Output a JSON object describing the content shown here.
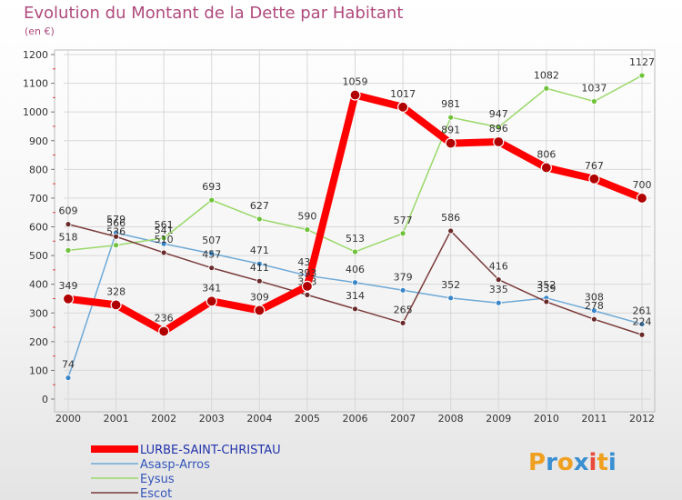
{
  "header": {
    "title": "Evolution du Montant de la Dette par Habitant",
    "unit": "(en €)"
  },
  "logo": {
    "text": "Proxiti",
    "letters": [
      "P",
      "r",
      "o",
      "x",
      "i",
      "t",
      "i"
    ],
    "colors": [
      "#f0a020",
      "#3a8fd0",
      "#f0a020",
      "#3a8fd0",
      "#e94b3c",
      "#f0a020",
      "#3a8fd0"
    ]
  },
  "chart_data": {
    "type": "line",
    "title": "Evolution du Montant de la Dette par Habitant",
    "ylabel": "(en €)",
    "xlabel": "",
    "x": [
      "2000",
      "2001",
      "2002",
      "2003",
      "2004",
      "2005",
      "2006",
      "2007",
      "2008",
      "2009",
      "2010",
      "2011",
      "2012"
    ],
    "ylim": [
      0,
      1200
    ],
    "yticks": [
      0,
      100,
      200,
      300,
      400,
      500,
      600,
      700,
      800,
      900,
      1000,
      1100,
      1200
    ],
    "grid": true,
    "legend_position": "bottom-left",
    "series": [
      {
        "name": "LURBE-SAINT-CHRISTAU",
        "color": "#ff0000",
        "marker": "#b00000",
        "width": 8,
        "r": 5.5,
        "values": [
          349,
          328,
          236,
          341,
          309,
          393,
          1059,
          1017,
          891,
          896,
          806,
          767,
          700
        ]
      },
      {
        "name": "Asasp-Arros",
        "color": "#6fa9d6",
        "marker": "#3a86c8",
        "width": 1.5,
        "r": 3,
        "values": [
          74,
          579,
          541,
          507,
          471,
          430,
          406,
          379,
          352,
          335,
          352,
          308,
          261
        ]
      },
      {
        "name": "Eysus",
        "color": "#9ad86a",
        "marker": "#6fc23a",
        "width": 1.5,
        "r": 3,
        "values": [
          518,
          536,
          561,
          693,
          627,
          590,
          513,
          577,
          981,
          947,
          1082,
          1037,
          1127
        ]
      },
      {
        "name": "Escot",
        "color": "#7a3a3a",
        "marker": "#6a2a2a",
        "width": 1.5,
        "r": 3,
        "values": [
          609,
          566,
          510,
          457,
          411,
          363,
          314,
          265,
          586,
          416,
          339,
          278,
          224
        ]
      }
    ]
  }
}
